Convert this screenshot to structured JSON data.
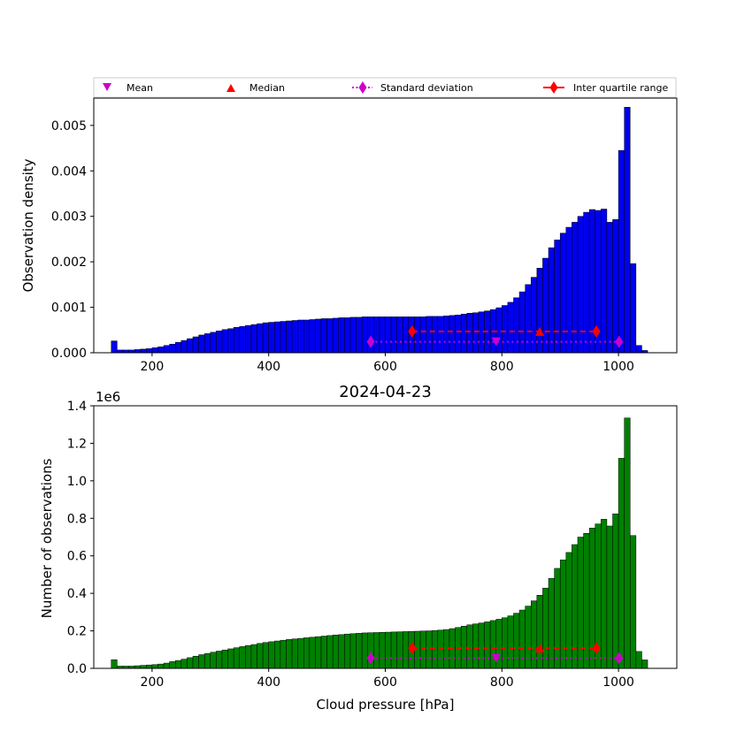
{
  "chart_data": [
    {
      "type": "bar",
      "panel": "top",
      "title": "",
      "xlabel": "",
      "ylabel": "Observation density",
      "bar_color": "#0000ee",
      "xlim": [
        100,
        1100
      ],
      "ylim": [
        0,
        0.0056
      ],
      "xticks": [
        200,
        400,
        600,
        800,
        1000
      ],
      "yticks": [
        "0.000",
        "0.001",
        "0.002",
        "0.003",
        "0.004",
        "0.005"
      ],
      "ytick_values": [
        0,
        0.001,
        0.002,
        0.003,
        0.004,
        0.005
      ],
      "bin_start": 130,
      "bin_width": 10,
      "values": [
        0.00026,
        6e-05,
        6e-05,
        6e-05,
        7e-05,
        8e-05,
        9e-05,
        0.00011,
        0.00013,
        0.00016,
        0.00019,
        0.00023,
        0.00027,
        0.00031,
        0.00035,
        0.00039,
        0.00042,
        0.00045,
        0.00048,
        0.00051,
        0.00053,
        0.00056,
        0.00058,
        0.0006,
        0.00062,
        0.00064,
        0.00066,
        0.00067,
        0.00068,
        0.00069,
        0.0007,
        0.00071,
        0.00072,
        0.00072,
        0.00073,
        0.00074,
        0.00075,
        0.00075,
        0.00076,
        0.00077,
        0.00077,
        0.00078,
        0.00078,
        0.00079,
        0.00079,
        0.00079,
        0.00079,
        0.00079,
        0.00079,
        0.00079,
        0.00079,
        0.00079,
        0.00079,
        0.00079,
        0.0008,
        0.0008,
        0.0008,
        0.00081,
        0.00082,
        0.00083,
        0.00085,
        0.00087,
        0.00088,
        0.0009,
        0.00092,
        0.00095,
        0.00099,
        0.00104,
        0.00111,
        0.00121,
        0.00134,
        0.0015,
        0.00166,
        0.00186,
        0.00208,
        0.00231,
        0.00248,
        0.00263,
        0.00276,
        0.00287,
        0.003,
        0.00309,
        0.00315,
        0.00313,
        0.00316,
        0.00287,
        0.00293,
        0.00445,
        0.0054,
        0.00196,
        0.00016,
        5e-05
      ],
      "stats": {
        "mean": {
          "x": 790,
          "y": 0.00024
        },
        "median": {
          "x": 865,
          "y": 0.00047
        },
        "std": {
          "x": [
            575,
            1001
          ],
          "y": 0.00024
        },
        "iqr": {
          "x": [
            646,
            962
          ],
          "y": 0.00047
        }
      }
    },
    {
      "type": "bar",
      "panel": "bottom",
      "title": "2024-04-23",
      "xlabel": "Cloud pressure [hPa]",
      "ylabel": "Number of observations",
      "offset_label": "1e6",
      "bar_color": "#008000",
      "xlim": [
        100,
        1100
      ],
      "ylim": [
        0,
        1.4
      ],
      "xticks": [
        200,
        400,
        600,
        800,
        1000
      ],
      "yticks": [
        "0.0",
        "0.2",
        "0.4",
        "0.6",
        "0.8",
        "1.0",
        "1.2",
        "1.4"
      ],
      "ytick_values": [
        0,
        0.2,
        0.4,
        0.6,
        0.8,
        1.0,
        1.2,
        1.4
      ],
      "bin_start": 130,
      "bin_width": 10,
      "values_unit": "1e6 observations",
      "values": [
        0.046,
        0.012,
        0.012,
        0.012,
        0.014,
        0.016,
        0.018,
        0.02,
        0.023,
        0.028,
        0.036,
        0.042,
        0.049,
        0.057,
        0.065,
        0.073,
        0.079,
        0.086,
        0.092,
        0.098,
        0.104,
        0.11,
        0.116,
        0.122,
        0.127,
        0.133,
        0.138,
        0.142,
        0.146,
        0.15,
        0.154,
        0.157,
        0.16,
        0.163,
        0.166,
        0.169,
        0.172,
        0.175,
        0.178,
        0.18,
        0.183,
        0.185,
        0.187,
        0.189,
        0.19,
        0.191,
        0.192,
        0.193,
        0.194,
        0.195,
        0.196,
        0.197,
        0.198,
        0.199,
        0.2,
        0.202,
        0.204,
        0.207,
        0.212,
        0.218,
        0.225,
        0.232,
        0.237,
        0.242,
        0.248,
        0.255,
        0.262,
        0.27,
        0.28,
        0.294,
        0.311,
        0.332,
        0.36,
        0.39,
        0.428,
        0.48,
        0.533,
        0.578,
        0.618,
        0.66,
        0.7,
        0.72,
        0.748,
        0.77,
        0.795,
        0.759,
        0.824,
        1.12,
        1.335,
        0.708,
        0.09,
        0.045
      ],
      "stats": {
        "mean": {
          "x": 790,
          "y": 0.055
        },
        "median": {
          "x": 865,
          "y": 0.108
        },
        "std": {
          "x": [
            575,
            1001
          ],
          "y": 0.055
        },
        "iqr": {
          "x": [
            646,
            962
          ],
          "y": 0.108
        }
      }
    }
  ],
  "legend": {
    "placement": "top",
    "entries": [
      {
        "label": "Mean",
        "color": "#cc00cc",
        "marker": "triangle-down"
      },
      {
        "label": "Median",
        "color": "#ff0000",
        "marker": "triangle-up"
      },
      {
        "label": "Standard deviation",
        "color": "#cc00cc",
        "marker": "diamond",
        "line": "dotted"
      },
      {
        "label": "Inter quartile range",
        "color": "#ff0000",
        "marker": "diamond",
        "line": "solid"
      }
    ]
  },
  "colors": {
    "mean": "#cc00cc",
    "median": "#ff0000",
    "std": "#cc00cc",
    "iqr": "#ff0000"
  }
}
